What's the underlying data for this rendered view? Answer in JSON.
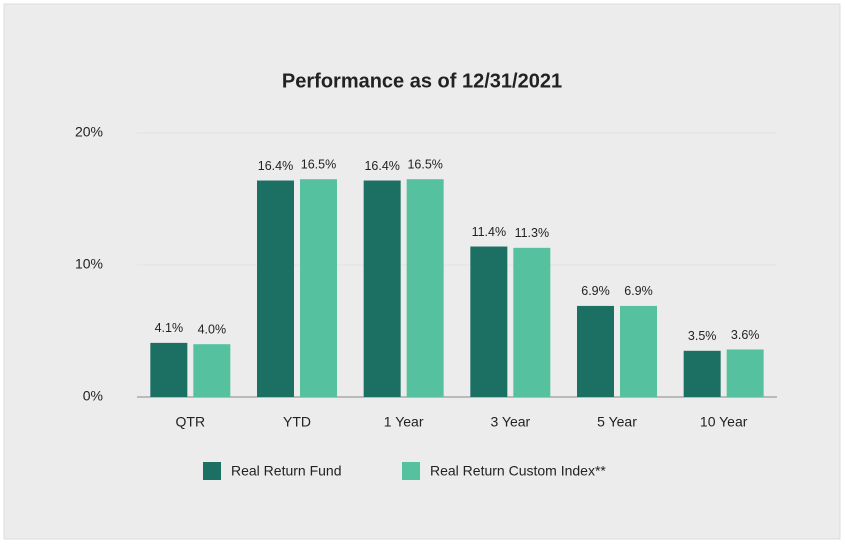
{
  "chart_data": {
    "type": "bar",
    "title": "Performance as of 12/31/2021",
    "categories": [
      "QTR",
      "YTD",
      "1 Year",
      "3 Year",
      "5 Year",
      "10 Year"
    ],
    "series": [
      {
        "name": "Real Return Fund",
        "color": "#1c6f63",
        "values": [
          4.1,
          16.4,
          16.4,
          11.4,
          6.9,
          3.5
        ],
        "value_labels": [
          "4.1%",
          "16.4%",
          "16.4%",
          "11.4%",
          "6.9%",
          "3.5%"
        ]
      },
      {
        "name": "Real Return Custom Index**",
        "color": "#55c19e",
        "values": [
          4.0,
          16.5,
          16.5,
          11.3,
          6.9,
          3.6
        ],
        "value_labels": [
          "4.0%",
          "16.5%",
          "16.5%",
          "11.3%",
          "6.9%",
          "3.6%"
        ]
      }
    ],
    "ylim": [
      0,
      20
    ],
    "yticks": [
      {
        "value": 0,
        "label": "0%"
      },
      {
        "value": 10,
        "label": "10%"
      },
      {
        "value": 20,
        "label": "20%"
      }
    ],
    "grid": true,
    "legend": "bottom"
  }
}
